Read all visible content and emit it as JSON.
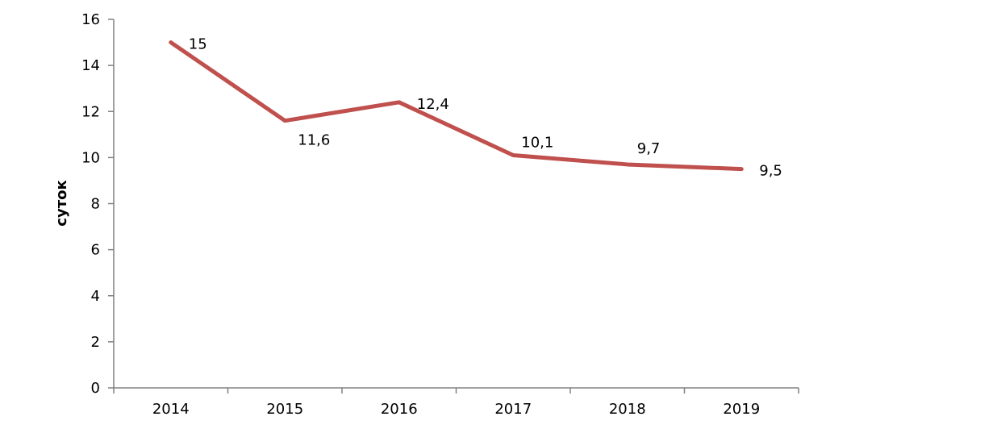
{
  "chart_data": {
    "type": "line",
    "title": "",
    "xlabel": "",
    "ylabel": "суток",
    "categories": [
      "2014",
      "2015",
      "2016",
      "2017",
      "2018",
      "2019"
    ],
    "ylim": [
      0,
      16
    ],
    "yticks": [
      0,
      2,
      4,
      6,
      8,
      10,
      12,
      14,
      16
    ],
    "grid": false,
    "legend": "none",
    "series": [
      {
        "color": "#c0504d",
        "values": [
          15,
          11.6,
          12.4,
          10.1,
          9.7,
          9.5
        ],
        "labels": [
          "15",
          "11,6",
          "12,4",
          "10,1",
          "9,7",
          "9,5"
        ]
      }
    ]
  }
}
